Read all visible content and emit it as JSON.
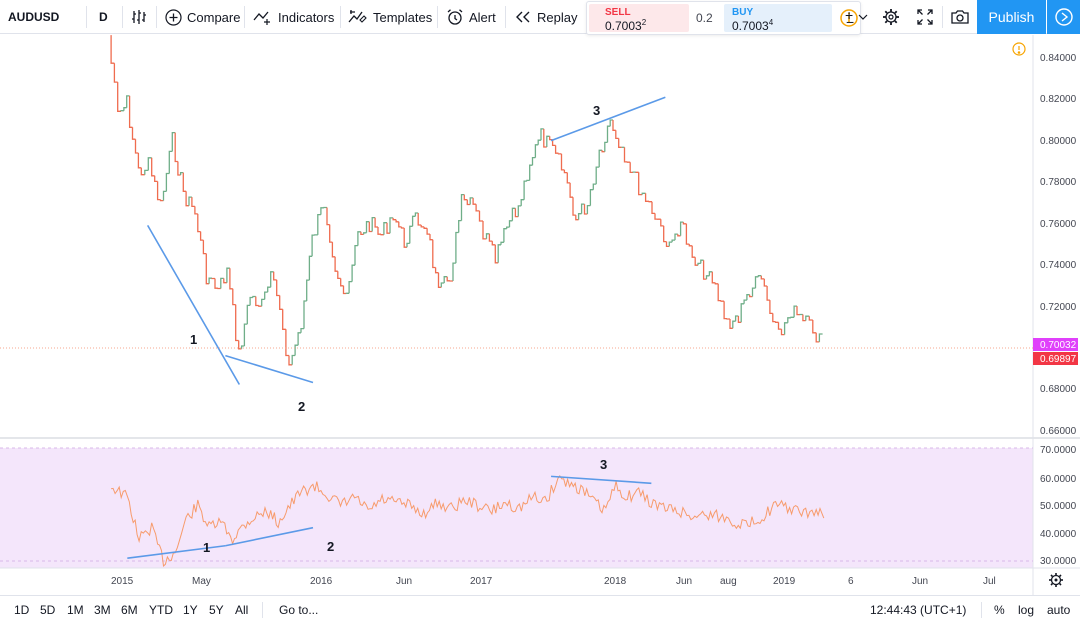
{
  "toolbar": {
    "symbol": "AUDUSD",
    "interval": "D",
    "compare_label": "Compare",
    "indicators_label": "Indicators",
    "templates_label": "Templates",
    "alert_label": "Alert",
    "replay_label": "Replay",
    "publish_label": "Publish"
  },
  "trade": {
    "sell_label": "SELL",
    "sell_price": "0.7003",
    "sell_sup": "2",
    "spread": "0.2",
    "buy_label": "BUY",
    "buy_price": "0.7003",
    "buy_sup": "4"
  },
  "colors": {
    "up": "#6fae88",
    "down": "#ef6c4f",
    "trendline": "#5b9ae8",
    "rsi": "#f79b6c",
    "rsi_bg": "#f4e6fb",
    "accent": "#2196f3",
    "price_tag": "#e040fb",
    "price_tag2": "#f23645",
    "warning": "#f7a400"
  },
  "price_axis": {
    "ticks": [
      "0.84000",
      "0.82000",
      "0.80000",
      "0.78000",
      "0.76000",
      "0.74000",
      "0.72000",
      "0.68000",
      "0.66000"
    ],
    "current_price": "0.70032",
    "prev_close": "0.69897"
  },
  "rsi_axis": {
    "ticks": [
      "70.0000",
      "60.0000",
      "50.0000",
      "40.0000",
      "30.0000"
    ]
  },
  "time_axis": {
    "ticks": [
      "2015",
      "May",
      "2016",
      "Jun",
      "2017",
      "2018",
      "Jun",
      "aug",
      "2019",
      "6",
      "Jun",
      "Jul"
    ]
  },
  "annotations": {
    "main": [
      "1",
      "2",
      "3"
    ],
    "rsi": [
      "1",
      "2",
      "3"
    ]
  },
  "bottom": {
    "ranges": [
      "1D",
      "5D",
      "1M",
      "3M",
      "6M",
      "YTD",
      "1Y",
      "5Y",
      "All"
    ],
    "goto_label": "Go to...",
    "clock": "12:44:43 (UTC+1)",
    "percent_label": "%",
    "log_label": "log",
    "auto_label": "auto"
  },
  "chart_data": [
    {
      "type": "line",
      "series": [
        {
          "name": "",
          "x": [
            "2014-12-10",
            "2015-01-01",
            "2015-01-20",
            "2015-02-15",
            "2015-03-10",
            "2015-04-05",
            "2015-05-01",
            "2015-05-25",
            "2015-06-20",
            "2015-07-15",
            "2015-08-10",
            "2015-08-30",
            "2015-09-25",
            "2015-10-20",
            "2015-11-15",
            "2015-12-05",
            "2015-12-25",
            "2016-01-15",
            "2016-02-10",
            "2016-03-05",
            "2016-04-01",
            "2016-04-25",
            "2016-05-20",
            "2016-06-15",
            "2016-07-10",
            "2016-08-05",
            "2016-09-01",
            "2016-09-25",
            "2016-10-20",
            "2016-11-15",
            "2016-12-10",
            "2017-01-05",
            "2017-01-30",
            "2017-02-25",
            "2017-03-20",
            "2017-04-15",
            "2017-05-10",
            "2017-06-05",
            "2017-06-30",
            "2017-07-25",
            "2017-08-20",
            "2017-09-15",
            "2017-10-10",
            "2017-11-05",
            "2017-12-01",
            "2017-12-25",
            "2018-01-26",
            "2018-02-20",
            "2018-03-15",
            "2018-04-10",
            "2018-05-05",
            "2018-05-30",
            "2018-06-25",
            "2018-07-20",
            "2018-08-15",
            "2018-09-10",
            "2018-10-05",
            "2018-10-30",
            "2018-11-25",
            "2018-12-20",
            "2019-01-02",
            "2019-01-30",
            "2019-02-25",
            "2019-03-20",
            "2019-04-10"
          ],
          "y": [
            0.851,
            0.812,
            0.818,
            0.785,
            0.788,
            0.768,
            0.8,
            0.775,
            0.765,
            0.735,
            0.727,
            0.737,
            0.697,
            0.725,
            0.72,
            0.733,
            0.72,
            0.69,
            0.712,
            0.752,
            0.77,
            0.74,
            0.722,
            0.755,
            0.76,
            0.754,
            0.765,
            0.751,
            0.762,
            0.758,
            0.725,
            0.735,
            0.77,
            0.768,
            0.755,
            0.742,
            0.758,
            0.768,
            0.79,
            0.802,
            0.795,
            0.784,
            0.762,
            0.77,
            0.795,
            0.81,
            0.794,
            0.781,
            0.772,
            0.762,
            0.747,
            0.762,
            0.741,
            0.737,
            0.728,
            0.712,
            0.715,
            0.728,
            0.733,
            0.711,
            0.705,
            0.718,
            0.712,
            0.709,
            0.699
          ]
        },
        {
          "name": "",
          "x": [
            "2015-03-01",
            "2015-09-20"
          ],
          "y": [
            0.759,
            0.682
          ]
        },
        {
          "name": "",
          "x": [
            "2015-08-20",
            "2016-03-01"
          ],
          "y": [
            0.696,
            0.683
          ]
        },
        {
          "name": "",
          "x": [
            "2017-08-10",
            "2018-04-20"
          ],
          "y": [
            0.8,
            0.821
          ]
        }
      ],
      "ylim": [
        0.66,
        0.85
      ]
    },
    {
      "type": "line",
      "series": [
        {
          "name": "",
          "x": [
            "2014-12-10",
            "2015-01-15",
            "2015-02-10",
            "2015-03-10",
            "2015-04-05",
            "2015-05-01",
            "2015-05-25",
            "2015-06-20",
            "2015-07-15",
            "2015-08-10",
            "2015-09-05",
            "2015-09-30",
            "2015-10-25",
            "2015-11-20",
            "2015-12-15",
            "2016-01-10",
            "2016-02-05",
            "2016-03-05",
            "2016-04-01",
            "2016-05-01",
            "2016-06-01",
            "2016-07-01",
            "2016-08-01",
            "2016-09-01",
            "2016-10-01",
            "2016-11-01",
            "2016-12-01",
            "2017-01-01",
            "2017-02-01",
            "2017-03-01",
            "2017-04-01",
            "2017-05-01",
            "2017-06-01",
            "2017-07-01",
            "2017-08-01",
            "2017-08-25",
            "2017-09-20",
            "2017-10-15",
            "2017-11-10",
            "2017-12-05",
            "2018-01-01",
            "2018-01-26",
            "2018-02-20",
            "2018-03-20",
            "2018-04-20",
            "2018-05-20",
            "2018-06-20",
            "2018-07-20",
            "2018-08-20",
            "2018-09-20",
            "2018-10-20",
            "2018-11-20",
            "2018-12-20",
            "2019-01-20",
            "2019-02-20",
            "2019-03-20",
            "2019-04-10"
          ],
          "y": [
            57,
            53,
            38,
            42,
            30,
            33,
            45,
            50,
            42,
            44,
            38,
            43,
            46,
            48,
            44,
            50,
            55,
            57,
            54,
            50,
            53,
            48,
            52,
            51,
            50,
            47,
            51,
            49,
            52,
            50,
            48,
            51,
            49,
            53,
            52,
            60,
            58,
            56,
            52,
            48,
            57,
            53,
            55,
            51,
            49,
            48,
            46,
            47,
            46,
            44,
            43,
            46,
            50,
            49,
            47,
            48,
            46
          ]
        },
        {
          "name": "",
          "x": [
            "2015-01-15",
            "2015-08-20"
          ],
          "y": [
            31,
            35.5
          ]
        },
        {
          "name": "",
          "x": [
            "2015-08-20",
            "2016-03-01"
          ],
          "y": [
            35.5,
            42
          ]
        },
        {
          "name": "",
          "x": [
            "2017-08-10",
            "2018-03-20"
          ],
          "y": [
            60.5,
            58
          ]
        }
      ],
      "ylim": [
        28,
        72
      ]
    }
  ]
}
